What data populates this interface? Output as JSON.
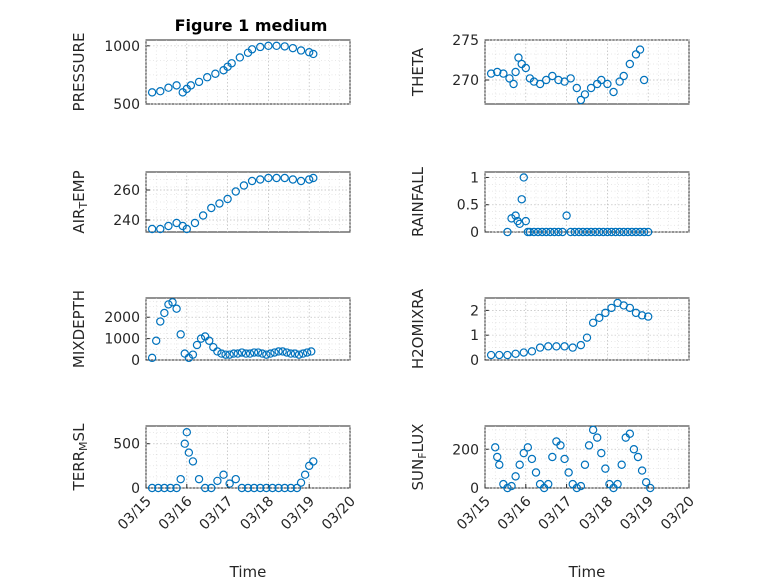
{
  "figure": {
    "title": "Figure 1 medium",
    "marker_color": "#0072BD"
  },
  "chart_data": [
    {
      "type": "scatter",
      "ylabel": "PRESSURE",
      "xlabel": "",
      "ylim": [
        500,
        1050
      ],
      "yticks": [
        500,
        1000
      ],
      "xlim": [
        0,
        5
      ],
      "xticks": [],
      "series": [
        {
          "x": [
            0.15,
            0.35,
            0.55,
            0.75,
            0.9,
            1.0,
            1.1,
            1.3,
            1.5,
            1.7,
            1.9,
            2.0,
            2.1,
            2.3,
            2.5,
            2.6,
            2.8,
            3.0,
            3.2,
            3.4,
            3.6,
            3.8,
            4.0,
            4.1
          ],
          "y": [
            600,
            610,
            640,
            660,
            600,
            630,
            660,
            690,
            730,
            760,
            790,
            820,
            850,
            900,
            940,
            970,
            990,
            1000,
            1000,
            995,
            980,
            960,
            945,
            930
          ]
        }
      ]
    },
    {
      "type": "scatter",
      "ylabel": "THETA",
      "xlabel": "",
      "ylim": [
        267,
        275
      ],
      "yticks": [
        270,
        275
      ],
      "xlim": [
        0,
        5
      ],
      "xticks": [],
      "series": [
        {
          "x": [
            0.15,
            0.3,
            0.45,
            0.6,
            0.7,
            0.75,
            0.82,
            0.9,
            1.0,
            1.1,
            1.2,
            1.35,
            1.5,
            1.65,
            1.8,
            1.95,
            2.1,
            2.25,
            2.35,
            2.45,
            2.6,
            2.75,
            2.85,
            3.0,
            3.15,
            3.3,
            3.4,
            3.55,
            3.7,
            3.8,
            3.9
          ],
          "y": [
            270.8,
            271.0,
            270.8,
            270.2,
            269.5,
            271.0,
            272.8,
            272.0,
            271.5,
            270.2,
            269.8,
            269.5,
            270.0,
            270.5,
            270.0,
            269.8,
            270.2,
            269.0,
            267.5,
            268.2,
            269.0,
            269.5,
            270.0,
            269.5,
            268.5,
            269.8,
            270.5,
            272.0,
            273.2,
            273.8,
            270.0
          ]
        }
      ]
    },
    {
      "type": "scatter",
      "ylabel": "AIR_TEMP",
      "xlabel": "",
      "ylim": [
        232,
        272
      ],
      "yticks": [
        240,
        260
      ],
      "xlim": [
        0,
        5
      ],
      "xticks": [],
      "series": [
        {
          "x": [
            0.15,
            0.35,
            0.55,
            0.75,
            0.9,
            1.0,
            1.2,
            1.4,
            1.6,
            1.8,
            2.0,
            2.2,
            2.4,
            2.6,
            2.8,
            3.0,
            3.2,
            3.4,
            3.6,
            3.8,
            4.0,
            4.1
          ],
          "y": [
            234,
            234,
            236,
            238,
            236,
            234,
            238,
            243,
            248,
            251,
            254,
            259,
            263,
            266,
            267,
            268,
            268,
            268,
            267,
            266,
            267,
            268
          ]
        }
      ]
    },
    {
      "type": "scatter",
      "ylabel": "RAINFALL",
      "xlabel": "",
      "ylim": [
        0,
        1.1
      ],
      "yticks": [
        0,
        0.5,
        1
      ],
      "xlim": [
        0,
        5
      ],
      "xticks": [],
      "series": [
        {
          "x": [
            0.55,
            0.65,
            0.75,
            0.8,
            0.85,
            0.9,
            0.95,
            1.0,
            1.05,
            1.1,
            1.2,
            1.3,
            1.4,
            1.5,
            1.6,
            1.7,
            1.8,
            1.9,
            2.0,
            2.1,
            2.2,
            2.3,
            2.4,
            2.5,
            2.6,
            2.7,
            2.8,
            2.9,
            3.0,
            3.1,
            3.2,
            3.3,
            3.4,
            3.5,
            3.6,
            3.7,
            3.8,
            3.9,
            4.0
          ],
          "y": [
            0,
            0.25,
            0.3,
            0.2,
            0.15,
            0.6,
            1.0,
            0.2,
            0,
            0,
            0,
            0,
            0,
            0,
            0,
            0,
            0,
            0,
            0.3,
            0,
            0,
            0,
            0,
            0,
            0,
            0,
            0,
            0,
            0,
            0,
            0,
            0,
            0,
            0,
            0,
            0,
            0,
            0,
            0
          ]
        }
      ]
    },
    {
      "type": "scatter",
      "ylabel": "MIXDEPTH",
      "xlabel": "",
      "ylim": [
        0,
        2900
      ],
      "yticks": [
        0,
        1000,
        2000
      ],
      "xlim": [
        0,
        5
      ],
      "xticks": [],
      "series": [
        {
          "x": [
            0.15,
            0.25,
            0.35,
            0.45,
            0.55,
            0.65,
            0.75,
            0.85,
            0.95,
            1.05,
            1.15,
            1.25,
            1.35,
            1.45,
            1.55,
            1.65,
            1.75,
            1.85,
            1.95,
            2.05,
            2.15,
            2.25,
            2.35,
            2.45,
            2.55,
            2.65,
            2.75,
            2.85,
            2.95,
            3.05,
            3.15,
            3.25,
            3.35,
            3.45,
            3.55,
            3.65,
            3.75,
            3.85,
            3.95,
            4.05
          ],
          "y": [
            100,
            900,
            1800,
            2200,
            2600,
            2700,
            2400,
            1200,
            300,
            100,
            250,
            700,
            1000,
            1100,
            900,
            600,
            400,
            300,
            250,
            250,
            300,
            300,
            350,
            300,
            300,
            350,
            350,
            300,
            250,
            300,
            350,
            400,
            400,
            350,
            300,
            300,
            250,
            300,
            350,
            400
          ]
        }
      ]
    },
    {
      "type": "scatter",
      "ylabel": "H2OMIXRA",
      "xlabel": "",
      "ylim": [
        0,
        2.5
      ],
      "yticks": [
        0,
        1,
        2
      ],
      "xlim": [
        0,
        5
      ],
      "xticks": [],
      "series": [
        {
          "x": [
            0.15,
            0.35,
            0.55,
            0.75,
            0.95,
            1.15,
            1.35,
            1.55,
            1.75,
            1.95,
            2.15,
            2.35,
            2.5,
            2.65,
            2.8,
            2.95,
            3.1,
            3.25,
            3.4,
            3.55,
            3.7,
            3.85,
            4.0
          ],
          "y": [
            0.2,
            0.2,
            0.2,
            0.25,
            0.3,
            0.35,
            0.5,
            0.55,
            0.55,
            0.55,
            0.5,
            0.6,
            0.9,
            1.5,
            1.7,
            1.9,
            2.1,
            2.3,
            2.2,
            2.1,
            1.9,
            1.8,
            1.75
          ]
        }
      ]
    },
    {
      "type": "scatter",
      "ylabel": "TERR_MSL",
      "xlabel": "Time",
      "ylim": [
        0,
        700
      ],
      "yticks": [
        0,
        500
      ],
      "xlim": [
        0,
        5
      ],
      "xticks": [
        "03/15",
        "03/16",
        "03/17",
        "03/18",
        "03/19",
        "03/20"
      ],
      "series": [
        {
          "x": [
            0.15,
            0.3,
            0.45,
            0.6,
            0.75,
            0.85,
            0.95,
            1.0,
            1.05,
            1.15,
            1.3,
            1.45,
            1.6,
            1.75,
            1.9,
            2.05,
            2.2,
            2.35,
            2.5,
            2.65,
            2.8,
            2.95,
            3.1,
            3.25,
            3.4,
            3.55,
            3.7,
            3.8,
            3.9,
            4.0,
            4.1
          ],
          "y": [
            0,
            0,
            0,
            0,
            0,
            100,
            500,
            630,
            400,
            300,
            100,
            0,
            0,
            80,
            150,
            50,
            100,
            0,
            0,
            0,
            0,
            0,
            0,
            0,
            0,
            0,
            0,
            60,
            150,
            250,
            300
          ]
        }
      ]
    },
    {
      "type": "scatter",
      "ylabel": "SUN_FLUX",
      "xlabel": "Time",
      "ylim": [
        0,
        320
      ],
      "yticks": [
        0,
        200
      ],
      "xlim": [
        0,
        5
      ],
      "xticks": [
        "03/15",
        "03/16",
        "03/17",
        "03/18",
        "03/19",
        "03/20"
      ],
      "series": [
        {
          "x": [
            0.25,
            0.3,
            0.35,
            0.45,
            0.55,
            0.65,
            0.75,
            0.85,
            0.95,
            1.05,
            1.15,
            1.25,
            1.35,
            1.45,
            1.55,
            1.65,
            1.75,
            1.85,
            1.95,
            2.05,
            2.15,
            2.25,
            2.35,
            2.45,
            2.55,
            2.65,
            2.75,
            2.85,
            2.95,
            3.05,
            3.15,
            3.25,
            3.35,
            3.45,
            3.55,
            3.65,
            3.75,
            3.85,
            3.95,
            4.05
          ],
          "y": [
            210,
            160,
            120,
            20,
            0,
            10,
            60,
            120,
            180,
            210,
            150,
            80,
            20,
            0,
            20,
            160,
            240,
            220,
            150,
            80,
            20,
            0,
            10,
            120,
            220,
            300,
            260,
            180,
            100,
            20,
            0,
            20,
            120,
            260,
            280,
            200,
            160,
            90,
            30,
            0
          ]
        }
      ]
    }
  ]
}
